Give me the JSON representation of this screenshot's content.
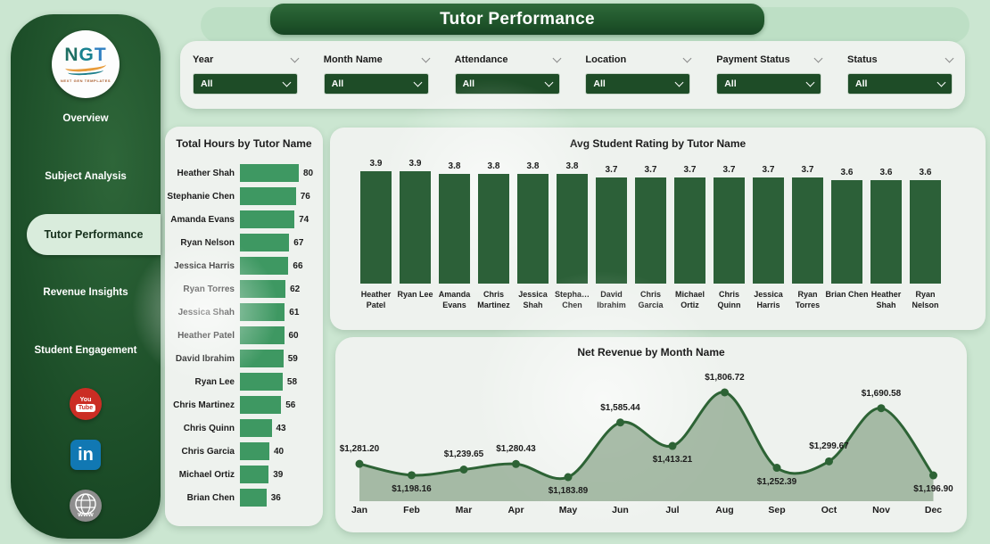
{
  "app": {
    "title": "Tutor Performance"
  },
  "logo": {
    "letters": [
      {
        "char": "N",
        "color": "#1e6f63"
      },
      {
        "char": "G",
        "color": "#18818f"
      },
      {
        "char": "T",
        "color": "#2f7fc1"
      }
    ],
    "subtext": "NEXT GEN TEMPLATES"
  },
  "sidebar": {
    "items": [
      {
        "label": "Overview",
        "active": false
      },
      {
        "label": "Subject Analysis",
        "active": false
      },
      {
        "label": "Tutor Performance",
        "active": true
      },
      {
        "label": "Revenue Insights",
        "active": false
      },
      {
        "label": "Student Engagement",
        "active": false
      }
    ],
    "social": {
      "youtube_top": "You",
      "youtube_bottom": "Tube",
      "linkedin": "in",
      "website": "www"
    }
  },
  "filters": [
    {
      "label": "Year",
      "value": "All"
    },
    {
      "label": "Month Name",
      "value": "All"
    },
    {
      "label": "Attendance",
      "value": "All"
    },
    {
      "label": "Location",
      "value": "All"
    },
    {
      "label": "Payment Status",
      "value": "All"
    },
    {
      "label": "Status",
      "value": "All"
    }
  ],
  "colors": {
    "page_bg": "#cbe6d1",
    "sidebar_green_dark": "#1d4f29",
    "card_bg": "#eef2ee",
    "hbar": "#3e9862",
    "vbar": "#2c6038",
    "line": "#2d6335",
    "area_fill": "rgba(116,148,116,0.6)",
    "dropdown_bg": "#1e4c27"
  },
  "chart_data": [
    {
      "type": "bar",
      "orientation": "horizontal",
      "title": "Total Hours by Tutor Name",
      "categories": [
        "Heather Shah",
        "Stephanie Chen",
        "Amanda Evans",
        "Ryan Nelson",
        "Jessica Harris",
        "Ryan Torres",
        "Jessica Shah",
        "Heather Patel",
        "David Ibrahim",
        "Ryan Lee",
        "Chris Martinez",
        "Chris Quinn",
        "Chris Garcia",
        "Michael Ortiz",
        "Brian Chen"
      ],
      "values": [
        80,
        76,
        74,
        67,
        66,
        62,
        61,
        60,
        59,
        58,
        56,
        43,
        40,
        39,
        36
      ],
      "xlim": [
        0,
        80
      ],
      "grid": false,
      "data_labels": true
    },
    {
      "type": "bar",
      "orientation": "vertical",
      "title": "Avg Student Rating by Tutor Name",
      "categories": [
        "Heather Patel",
        "Ryan Lee",
        "Amanda Evans",
        "Chris Martinez",
        "Jessica Shah",
        "Stepha… Chen",
        "David Ibrahim",
        "Chris Garcia",
        "Michael Ortiz",
        "Chris Quinn",
        "Jessica Harris",
        "Ryan Torres",
        "Brian Chen",
        "Heather Shah",
        "Ryan Nelson"
      ],
      "values": [
        3.9,
        3.9,
        3.8,
        3.8,
        3.8,
        3.8,
        3.7,
        3.7,
        3.7,
        3.7,
        3.7,
        3.7,
        3.6,
        3.6,
        3.6
      ],
      "ylim": [
        0,
        3.9
      ],
      "grid": false,
      "data_labels": true
    },
    {
      "type": "area",
      "title": "Net Revenue by Month Name",
      "x": [
        "Jan",
        "Feb",
        "Mar",
        "Apr",
        "May",
        "Jun",
        "Jul",
        "Aug",
        "Sep",
        "Oct",
        "Nov",
        "Dec"
      ],
      "values": [
        1281.2,
        1198.16,
        1239.65,
        1280.43,
        1183.89,
        1585.44,
        1413.21,
        1806.72,
        1252.39,
        1299.67,
        1690.58,
        1196.9
      ],
      "labels": [
        "$1,281.20",
        "$1,198.16",
        "$1,239.65",
        "$1,280.43",
        "$1,183.89",
        "$1,585.44",
        "$1,413.21",
        "$1,806.72",
        "$1,252.39",
        "$1,299.67",
        "$1,690.58",
        "$1,196.90"
      ],
      "label_positions": [
        "above",
        "below",
        "above",
        "above",
        "below",
        "above",
        "below",
        "above",
        "below",
        "above",
        "above",
        "below"
      ],
      "smooth": true,
      "grid": false
    }
  ]
}
